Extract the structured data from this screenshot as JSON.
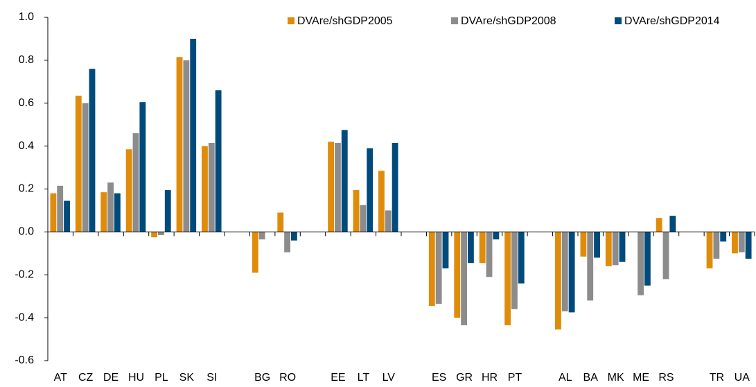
{
  "chart_data": {
    "type": "bar",
    "categories": [
      "AT",
      "CZ",
      "DE",
      "HU",
      "PL",
      "SK",
      "SI",
      null,
      "BG",
      "RO",
      null,
      "EE",
      "LT",
      "LV",
      null,
      "ES",
      "GR",
      "HR",
      "PT",
      null,
      "AL",
      "BA",
      "MK",
      "ME",
      "RS",
      null,
      "TR",
      "UA"
    ],
    "series": [
      {
        "name": "DVAre/shGDP2005",
        "color": "#e08c0b",
        "values": [
          0.18,
          0.635,
          0.185,
          0.385,
          -0.025,
          0.815,
          0.4,
          null,
          -0.19,
          0.09,
          null,
          0.42,
          0.195,
          0.285,
          null,
          -0.345,
          -0.4,
          -0.145,
          -0.435,
          null,
          -0.455,
          -0.115,
          -0.16,
          null,
          0.065,
          null,
          -0.17,
          -0.1
        ]
      },
      {
        "name": "DVAre/shGDP2008",
        "color": "#8c8c8c",
        "values": [
          0.215,
          0.6,
          0.23,
          0.46,
          -0.015,
          0.8,
          0.415,
          null,
          -0.035,
          -0.095,
          null,
          0.415,
          0.125,
          0.1,
          null,
          -0.335,
          -0.435,
          -0.21,
          -0.36,
          null,
          -0.37,
          -0.32,
          -0.155,
          -0.295,
          -0.22,
          null,
          -0.125,
          -0.095
        ]
      },
      {
        "name": "DVAre/shGDP2014",
        "color": "#004a7c",
        "values": [
          0.145,
          0.76,
          0.18,
          0.605,
          0.195,
          0.9,
          0.66,
          null,
          null,
          -0.04,
          null,
          0.475,
          0.39,
          0.415,
          null,
          -0.17,
          -0.145,
          -0.035,
          -0.24,
          null,
          -0.375,
          -0.12,
          -0.14,
          -0.25,
          0.075,
          null,
          -0.045,
          -0.125
        ]
      }
    ],
    "ylim": [
      -0.6,
      1.0
    ],
    "yticks": [
      -0.6,
      -0.4,
      -0.2,
      {
        "value": 0,
        "label": "0.0"
      },
      0.2,
      0.4,
      0.6,
      0.8,
      {
        "value": 1.0,
        "label": "1.0"
      }
    ],
    "legend": "top-right"
  }
}
